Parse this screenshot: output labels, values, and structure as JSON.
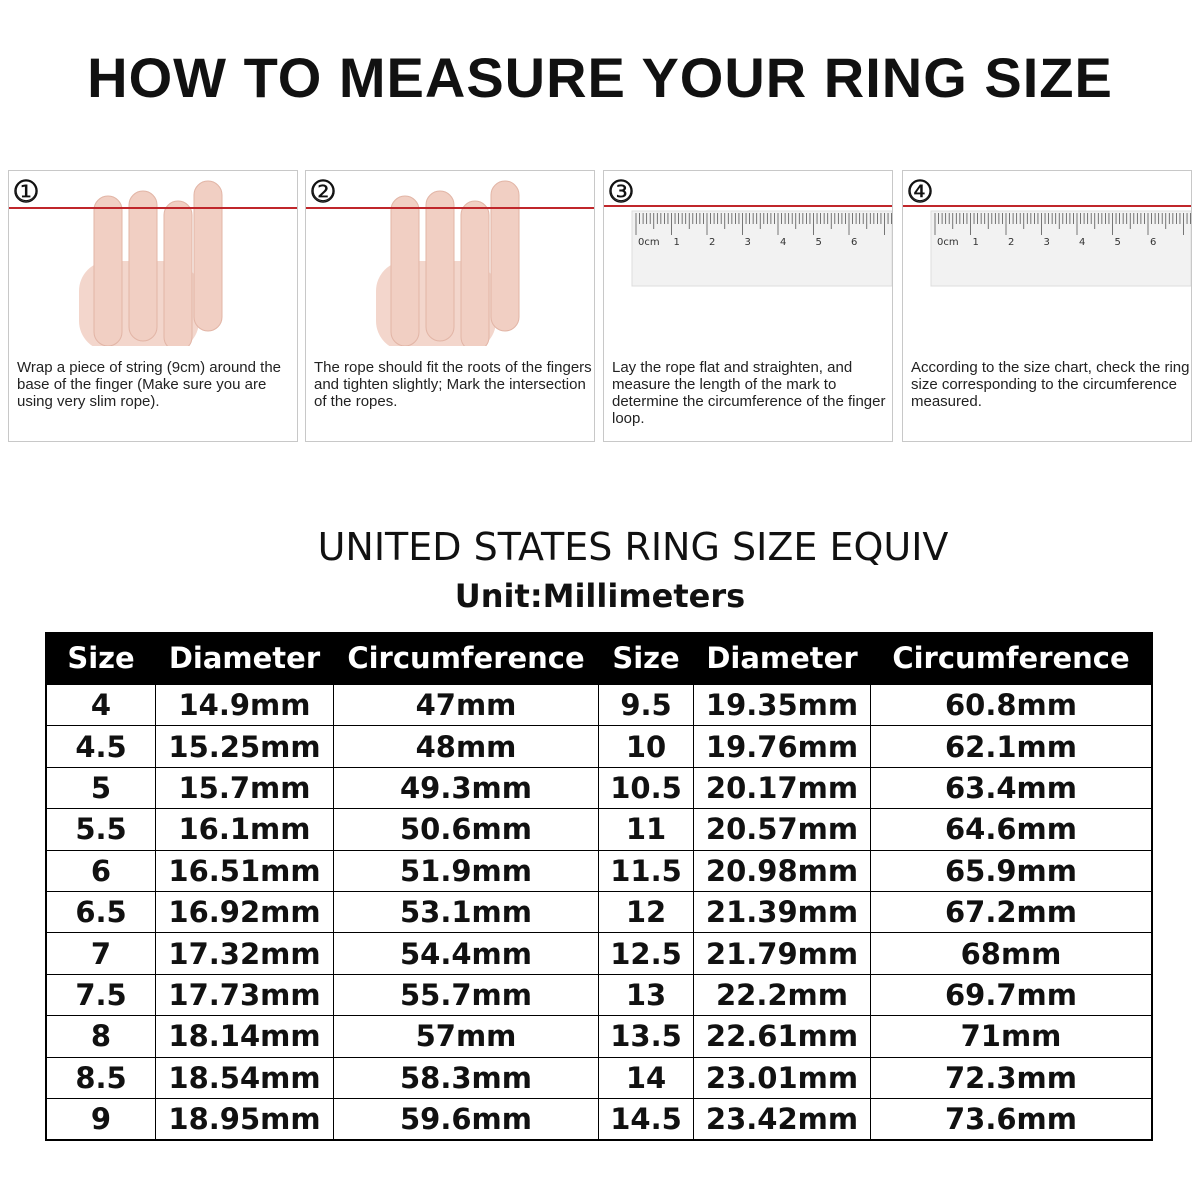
{
  "title": "HOW TO MEASURE YOUR RING SIZE",
  "steps": [
    {
      "number": "①",
      "text": "Wrap a piece of string (9cm) around the base of the finger (Make sure you are using very slim rope)."
    },
    {
      "number": "②",
      "text": "The rope should fit the roots of the fingers and tighten slightly; Mark the intersection of the ropes."
    },
    {
      "number": "③",
      "text": "Lay the rope flat and straighten, and measure the length of the mark to determine the circumference of the finger loop.",
      "ruler": [
        "0cm",
        "1",
        "2",
        "3",
        "4",
        "5",
        "6"
      ]
    },
    {
      "number": "④",
      "text": "According to the size chart, check the ring size corresponding to the circumference measured.",
      "ruler": [
        "0cm",
        "1",
        "2",
        "3",
        "4",
        "5",
        "6"
      ]
    }
  ],
  "table": {
    "title": "UNITED STATES RING SIZE EQUIV",
    "unit": "Unit:Millimeters",
    "header": [
      "Size",
      "Diameter",
      "Circumference",
      "Size",
      "Diameter",
      "Circumference"
    ],
    "rows": [
      [
        "4",
        "14.9mm",
        "47mm",
        "9.5",
        "19.35mm",
        "60.8mm"
      ],
      [
        "4.5",
        "15.25mm",
        "48mm",
        "10",
        "19.76mm",
        "62.1mm"
      ],
      [
        "5",
        "15.7mm",
        "49.3mm",
        "10.5",
        "20.17mm",
        "63.4mm"
      ],
      [
        "5.5",
        "16.1mm",
        "50.6mm",
        "11",
        "20.57mm",
        "64.6mm"
      ],
      [
        "6",
        "16.51mm",
        "51.9mm",
        "11.5",
        "20.98mm",
        "65.9mm"
      ],
      [
        "6.5",
        "16.92mm",
        "53.1mm",
        "12",
        "21.39mm",
        "67.2mm"
      ],
      [
        "7",
        "17.32mm",
        "54.4mm",
        "12.5",
        "21.79mm",
        "68mm"
      ],
      [
        "7.5",
        "17.73mm",
        "55.7mm",
        "13",
        "22.2mm",
        "69.7mm"
      ],
      [
        "8",
        "18.14mm",
        "57mm",
        "13.5",
        "22.61mm",
        "71mm"
      ],
      [
        "8.5",
        "18.54mm",
        "58.3mm",
        "14",
        "23.01mm",
        "72.3mm"
      ],
      [
        "9",
        "18.95mm",
        "59.6mm",
        "14.5",
        "23.42mm",
        "73.6mm"
      ]
    ]
  }
}
